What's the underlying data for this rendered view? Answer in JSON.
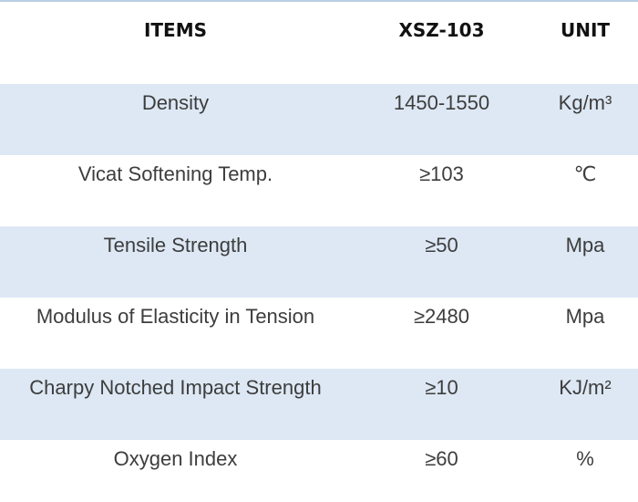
{
  "table": {
    "headers": {
      "items": "ITEMS",
      "model": "XSZ-103",
      "unit": "UNIT"
    },
    "rows": [
      {
        "item": "Density",
        "value": "1450-1550",
        "unit": "Kg/m³"
      },
      {
        "item": "Vicat Softening Temp.",
        "value": "≥103",
        "unit": "℃"
      },
      {
        "item": "Tensile Strength",
        "value": "≥50",
        "unit": "Mpa"
      },
      {
        "item": "Modulus of Elasticity in Tension",
        "value": "≥2480",
        "unit": "Mpa"
      },
      {
        "item": "Charpy Notched Impact Strength",
        "value": "≥10",
        "unit": "KJ/m²"
      },
      {
        "item": "Oxygen Index",
        "value": "≥60",
        "unit": "%"
      }
    ]
  },
  "colors": {
    "row_shade": "#dde8f4",
    "top_rule": "#b9cfe3"
  }
}
